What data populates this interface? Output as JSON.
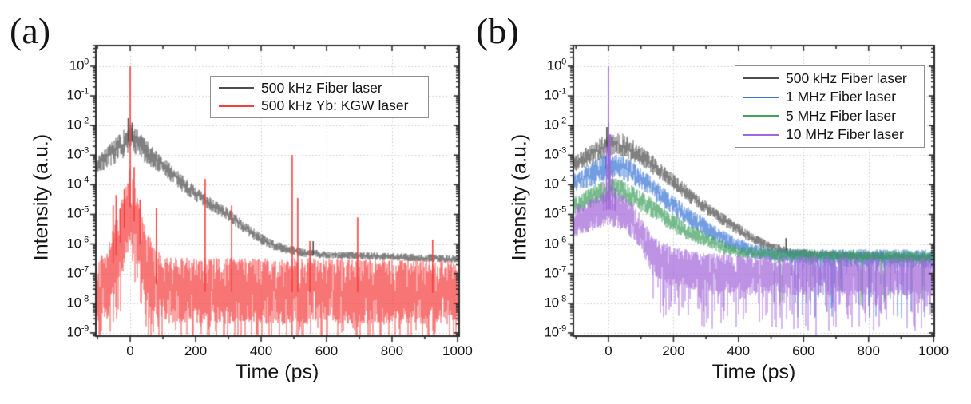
{
  "page": {
    "background": "#ffffff",
    "frame_color": "#2b2b2b",
    "text_color": "#141414"
  },
  "chart_data": [
    {
      "id": "a",
      "panel_label": "(a)",
      "type": "line",
      "xlabel": "Time (ps)",
      "ylabel": "Intensity (a.u.)",
      "x_ticks": [
        0,
        200,
        400,
        600,
        800,
        1000
      ],
      "x_minor_step": 100,
      "xlim": [
        -105,
        1005
      ],
      "y_scale": "log",
      "y_tick_base": "10",
      "y_tick_exponents": [
        0,
        -1,
        -2,
        -3,
        -4,
        -5,
        -6,
        -7,
        -8,
        -9
      ],
      "ylim_exp": [
        -9.11,
        0.7
      ],
      "grid": {
        "style": "dotted",
        "color": "#c9c9c9"
      },
      "legend": {
        "position": "top-right-inside"
      },
      "series": [
        {
          "name": "500 kHz Fiber laser",
          "color": "#4d4d4d",
          "seed": 7,
          "samples": 4,
          "envelope": [
            [
              -105,
              -3.4
            ],
            [
              -70,
              -3.05
            ],
            [
              -40,
              -2.8
            ],
            [
              -15,
              -2.55
            ],
            [
              0,
              -2.45
            ],
            [
              25,
              -2.6
            ],
            [
              60,
              -3.0
            ],
            [
              100,
              -3.35
            ],
            [
              160,
              -3.95
            ],
            [
              230,
              -4.55
            ],
            [
              300,
              -5.0
            ],
            [
              370,
              -5.6
            ],
            [
              420,
              -5.95
            ],
            [
              470,
              -6.15
            ],
            [
              520,
              -6.27
            ],
            [
              600,
              -6.35
            ],
            [
              800,
              -6.42
            ],
            [
              1005,
              -6.5
            ]
          ],
          "spread": [
            [
              -105,
              0.28
            ],
            [
              -30,
              0.45
            ],
            [
              0,
              0.5
            ],
            [
              40,
              0.42
            ],
            [
              100,
              0.3
            ],
            [
              250,
              0.22
            ],
            [
              450,
              0.16
            ],
            [
              600,
              0.12
            ],
            [
              1005,
              0.12
            ]
          ],
          "spikes": [
            [
              -6,
              -1.75
            ],
            [
              6,
              -1.9
            ],
            [
              559,
              -5.9
            ]
          ]
        },
        {
          "name": "500 kHz Yb: KGW laser",
          "color": "#f54040",
          "seed": 13,
          "samples": 6,
          "envelope": [
            [
              -105,
              -7.6
            ],
            [
              -70,
              -7.4
            ],
            [
              -55,
              -6.7
            ],
            [
              -35,
              -6.1
            ],
            [
              -15,
              -5.3
            ],
            [
              0,
              -4.7
            ],
            [
              15,
              -5.3
            ],
            [
              40,
              -6.4
            ],
            [
              70,
              -7.2
            ],
            [
              100,
              -7.55
            ],
            [
              1005,
              -7.6
            ]
          ],
          "spread": [
            [
              -105,
              1.1
            ],
            [
              -60,
              1.2
            ],
            [
              0,
              1.3
            ],
            [
              60,
              1.2
            ],
            [
              100,
              1.1
            ],
            [
              1005,
              1.1
            ]
          ],
          "tail_down": {
            "start": -200,
            "prob": 0.3,
            "extra": 1.5
          },
          "spikes": [
            [
              -52,
              -4.7
            ],
            [
              -43,
              -4.35
            ],
            [
              -30,
              -4.8
            ],
            [
              -18,
              -4.15
            ],
            [
              0,
              0.0
            ],
            [
              12,
              -3.4
            ],
            [
              30,
              -4.5
            ],
            [
              80,
              -4.8
            ],
            [
              229,
              -3.8
            ],
            [
              310,
              -4.7
            ],
            [
              495,
              -3.0
            ],
            [
              512,
              -4.45
            ],
            [
              549,
              -5.9
            ],
            [
              695,
              -5.1
            ],
            [
              924,
              -5.85
            ]
          ]
        }
      ]
    },
    {
      "id": "b",
      "panel_label": "(b)",
      "type": "line",
      "xlabel": "Time (ps)",
      "ylabel": "Intensity (a.u.)",
      "x_ticks": [
        0,
        200,
        400,
        600,
        800,
        1000
      ],
      "x_minor_step": 100,
      "xlim": [
        -108,
        1002
      ],
      "y_scale": "log",
      "y_tick_base": "10",
      "y_tick_exponents": [
        0,
        -1,
        -2,
        -3,
        -4,
        -5,
        -6,
        -7,
        -8,
        -9
      ],
      "ylim_exp": [
        -9.11,
        0.7
      ],
      "grid": {
        "style": "dotted",
        "color": "#c9c9c9"
      },
      "legend": {
        "position": "top-right-inside"
      },
      "series": [
        {
          "name": "500 kHz Fiber laser",
          "color": "#4d4d4d",
          "seed": 21,
          "samples": 4,
          "envelope": [
            [
              -108,
              -3.3
            ],
            [
              -60,
              -3.0
            ],
            [
              -20,
              -2.75
            ],
            [
              0,
              -2.7
            ],
            [
              30,
              -2.6
            ],
            [
              60,
              -2.75
            ],
            [
              100,
              -3.0
            ],
            [
              150,
              -3.45
            ],
            [
              200,
              -3.9
            ],
            [
              250,
              -4.35
            ],
            [
              300,
              -4.75
            ],
            [
              350,
              -5.15
            ],
            [
              400,
              -5.5
            ],
            [
              450,
              -5.85
            ],
            [
              500,
              -6.1
            ],
            [
              560,
              -6.28
            ],
            [
              650,
              -6.36
            ],
            [
              1002,
              -6.45
            ]
          ],
          "spread": [
            [
              -108,
              0.28
            ],
            [
              0,
              0.42
            ],
            [
              50,
              0.4
            ],
            [
              150,
              0.3
            ],
            [
              300,
              0.22
            ],
            [
              500,
              0.15
            ],
            [
              1002,
              0.12
            ]
          ],
          "spikes": [
            [
              -5,
              -2.05
            ],
            [
              0,
              -1.9
            ],
            [
              546,
              -5.8
            ]
          ]
        },
        {
          "name": "1 MHz Fiber laser",
          "color": "#3a76d6",
          "seed": 33,
          "samples": 4,
          "envelope": [
            [
              -108,
              -3.95
            ],
            [
              -60,
              -3.7
            ],
            [
              -20,
              -3.45
            ],
            [
              0,
              -3.4
            ],
            [
              30,
              -3.35
            ],
            [
              60,
              -3.5
            ],
            [
              100,
              -3.8
            ],
            [
              150,
              -4.25
            ],
            [
              200,
              -4.7
            ],
            [
              250,
              -5.1
            ],
            [
              300,
              -5.45
            ],
            [
              350,
              -5.8
            ],
            [
              400,
              -6.05
            ],
            [
              450,
              -6.25
            ],
            [
              520,
              -6.38
            ],
            [
              650,
              -6.45
            ],
            [
              1002,
              -6.5
            ]
          ],
          "spread": [
            [
              -108,
              0.32
            ],
            [
              0,
              0.45
            ],
            [
              100,
              0.35
            ],
            [
              300,
              0.3
            ],
            [
              500,
              0.2
            ],
            [
              650,
              0.28
            ],
            [
              1002,
              0.32
            ]
          ],
          "tail_down": {
            "start": 550,
            "prob": 0.22,
            "extra": 1.9
          },
          "spikes": [
            [
              2,
              -2.8
            ],
            [
              -8,
              -3.05
            ]
          ]
        },
        {
          "name": "5 MHz Fiber laser",
          "color": "#42a05f",
          "seed": 41,
          "samples": 4,
          "envelope": [
            [
              -108,
              -4.7
            ],
            [
              -60,
              -4.45
            ],
            [
              -20,
              -4.25
            ],
            [
              0,
              -4.2
            ],
            [
              30,
              -4.15
            ],
            [
              60,
              -4.3
            ],
            [
              100,
              -4.55
            ],
            [
              150,
              -4.9
            ],
            [
              200,
              -5.3
            ],
            [
              250,
              -5.6
            ],
            [
              300,
              -5.85
            ],
            [
              350,
              -6.1
            ],
            [
              400,
              -6.25
            ],
            [
              500,
              -6.35
            ],
            [
              1002,
              -6.45
            ]
          ],
          "spread": [
            [
              -108,
              0.3
            ],
            [
              0,
              0.4
            ],
            [
              200,
              0.3
            ],
            [
              400,
              0.2
            ],
            [
              1002,
              0.22
            ]
          ],
          "tail_down": {
            "start": 500,
            "prob": 0.1,
            "extra": 1.6
          },
          "spikes": [
            [
              3,
              -3.35
            ],
            [
              10,
              -3.8
            ]
          ]
        },
        {
          "name": "10 MHz Fiber laser",
          "color": "#a468da",
          "seed": 55,
          "samples": 6,
          "envelope": [
            [
              -108,
              -5.25
            ],
            [
              -70,
              -5.1
            ],
            [
              -30,
              -4.9
            ],
            [
              0,
              -4.78
            ],
            [
              30,
              -4.85
            ],
            [
              60,
              -5.05
            ],
            [
              90,
              -5.45
            ],
            [
              120,
              -6.05
            ],
            [
              150,
              -6.5
            ],
            [
              200,
              -6.75
            ],
            [
              300,
              -6.95
            ],
            [
              500,
              -7.05
            ],
            [
              1002,
              -7.1
            ]
          ],
          "spread": [
            [
              -108,
              0.5
            ],
            [
              0,
              0.6
            ],
            [
              90,
              0.6
            ],
            [
              150,
              0.7
            ],
            [
              250,
              0.65
            ],
            [
              1002,
              0.65
            ]
          ],
          "tail_down": {
            "start": 130,
            "prob": 0.5,
            "extra": 1.4
          },
          "spikes": [
            [
              0,
              0.0
            ],
            [
              5,
              -2.3
            ],
            [
              -6,
              -2.7
            ],
            [
              12,
              -3.5
            ],
            [
              -14,
              -3.9
            ],
            [
              20,
              -4.1
            ]
          ]
        }
      ]
    }
  ]
}
